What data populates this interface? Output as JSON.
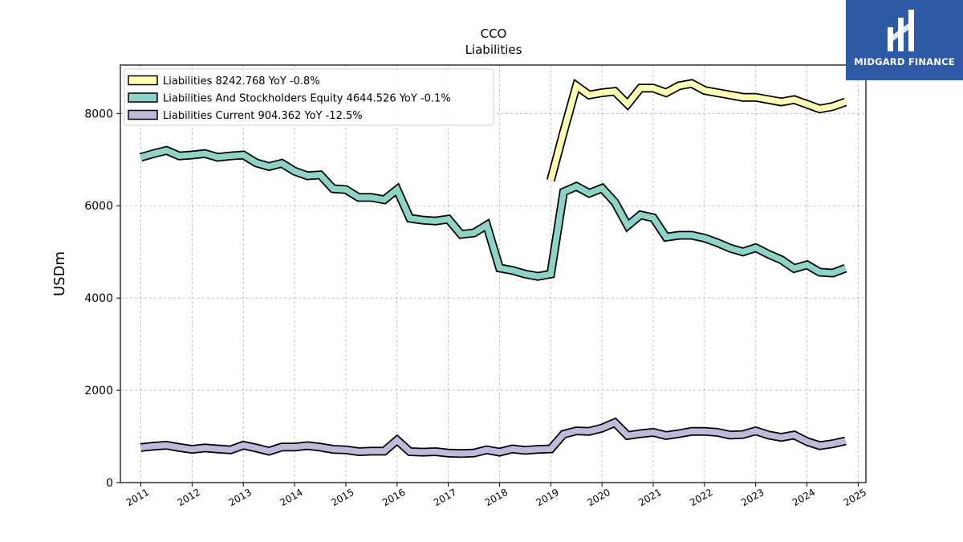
{
  "brand": {
    "name": "MIDGARD FINANCE",
    "bg_color": "#2f5aa8"
  },
  "chart_data": {
    "type": "line",
    "title": "CCO",
    "subtitle": "Liabilities",
    "ylabel": "USDm",
    "xlim": [
      2010.6,
      2025.15
    ],
    "ylim": [
      0,
      9050
    ],
    "yticks": [
      0,
      2000,
      4000,
      6000,
      8000
    ],
    "xticks": [
      "2011",
      "2012",
      "2013",
      "2014",
      "2015",
      "2016",
      "2017",
      "2018",
      "2019",
      "2020",
      "2021",
      "2022",
      "2023",
      "2024",
      "2025"
    ],
    "grid": true,
    "legend_position": "top-left",
    "series": [
      {
        "name": "Liabilities",
        "legend_label": "Liabilities  8242.768 YoY -0.8%",
        "color": "#ffffb3",
        "x": [
          2019.0,
          2019.25,
          2019.5,
          2019.75,
          2020.0,
          2020.25,
          2020.5,
          2020.75,
          2021.0,
          2021.25,
          2021.5,
          2021.75,
          2022.0,
          2022.25,
          2022.5,
          2022.75,
          2023.0,
          2023.25,
          2023.5,
          2023.75,
          2024.0,
          2024.25,
          2024.5,
          2024.75
        ],
        "y": [
          6550,
          7600,
          8600,
          8400,
          8450,
          8480,
          8200,
          8550,
          8550,
          8450,
          8600,
          8650,
          8500,
          8450,
          8400,
          8350,
          8350,
          8300,
          8250,
          8300,
          8200,
          8100,
          8150,
          8250
        ]
      },
      {
        "name": "Liabilities And Stockholders Equity",
        "legend_label": "Liabilities And Stockholders Equity  4644.526 YoY -0.1%",
        "color": "#8dd3c7",
        "x": [
          2011.0,
          2011.25,
          2011.5,
          2011.75,
          2012.0,
          2012.25,
          2012.5,
          2012.75,
          2013.0,
          2013.25,
          2013.5,
          2013.75,
          2014.0,
          2014.25,
          2014.5,
          2014.75,
          2015.0,
          2015.25,
          2015.5,
          2015.75,
          2016.0,
          2016.25,
          2016.5,
          2016.75,
          2017.0,
          2017.25,
          2017.5,
          2017.75,
          2018.0,
          2018.25,
          2018.5,
          2018.75,
          2019.0,
          2019.25,
          2019.5,
          2019.75,
          2020.0,
          2020.25,
          2020.5,
          2020.75,
          2021.0,
          2021.25,
          2021.5,
          2021.75,
          2022.0,
          2022.25,
          2022.5,
          2022.75,
          2023.0,
          2023.25,
          2023.5,
          2023.75,
          2024.0,
          2024.25,
          2024.5,
          2024.75
        ],
        "y": [
          7050,
          7130,
          7200,
          7080,
          7100,
          7130,
          7050,
          7080,
          7100,
          6930,
          6850,
          6920,
          6750,
          6650,
          6670,
          6370,
          6350,
          6180,
          6180,
          6130,
          6350,
          5730,
          5690,
          5670,
          5710,
          5380,
          5410,
          5580,
          4650,
          4600,
          4520,
          4470,
          4520,
          6300,
          6420,
          6270,
          6380,
          6080,
          5570,
          5800,
          5740,
          5320,
          5360,
          5360,
          5300,
          5200,
          5080,
          5000,
          5090,
          4950,
          4830,
          4640,
          4720,
          4560,
          4540,
          4645
        ]
      },
      {
        "name": "Liabilities Current",
        "legend_label": "Liabilities Current  904.362 YoY -12.5%",
        "color": "#bebada",
        "x": [
          2011.0,
          2011.25,
          2011.5,
          2011.75,
          2012.0,
          2012.25,
          2012.5,
          2012.75,
          2013.0,
          2013.25,
          2013.5,
          2013.75,
          2014.0,
          2014.25,
          2014.5,
          2014.75,
          2015.0,
          2015.25,
          2015.5,
          2015.75,
          2016.0,
          2016.25,
          2016.5,
          2016.75,
          2017.0,
          2017.25,
          2017.5,
          2017.75,
          2018.0,
          2018.25,
          2018.5,
          2018.75,
          2019.0,
          2019.25,
          2019.5,
          2019.75,
          2020.0,
          2020.25,
          2020.5,
          2020.75,
          2021.0,
          2021.25,
          2021.5,
          2021.75,
          2022.0,
          2022.25,
          2022.5,
          2022.75,
          2023.0,
          2023.25,
          2023.5,
          2023.75,
          2024.0,
          2024.25,
          2024.5,
          2024.75
        ],
        "y": [
          760,
          790,
          810,
          760,
          720,
          750,
          730,
          710,
          810,
          750,
          680,
          770,
          770,
          800,
          770,
          720,
          710,
          670,
          680,
          680,
          920,
          670,
          660,
          670,
          640,
          630,
          640,
          710,
          660,
          730,
          700,
          720,
          730,
          1050,
          1120,
          1110,
          1180,
          1300,
          1020,
          1060,
          1090,
          1020,
          1060,
          1110,
          1110,
          1090,
          1030,
          1040,
          1120,
          1030,
          980,
          1030,
          890,
          800,
          840,
          904
        ]
      }
    ]
  }
}
